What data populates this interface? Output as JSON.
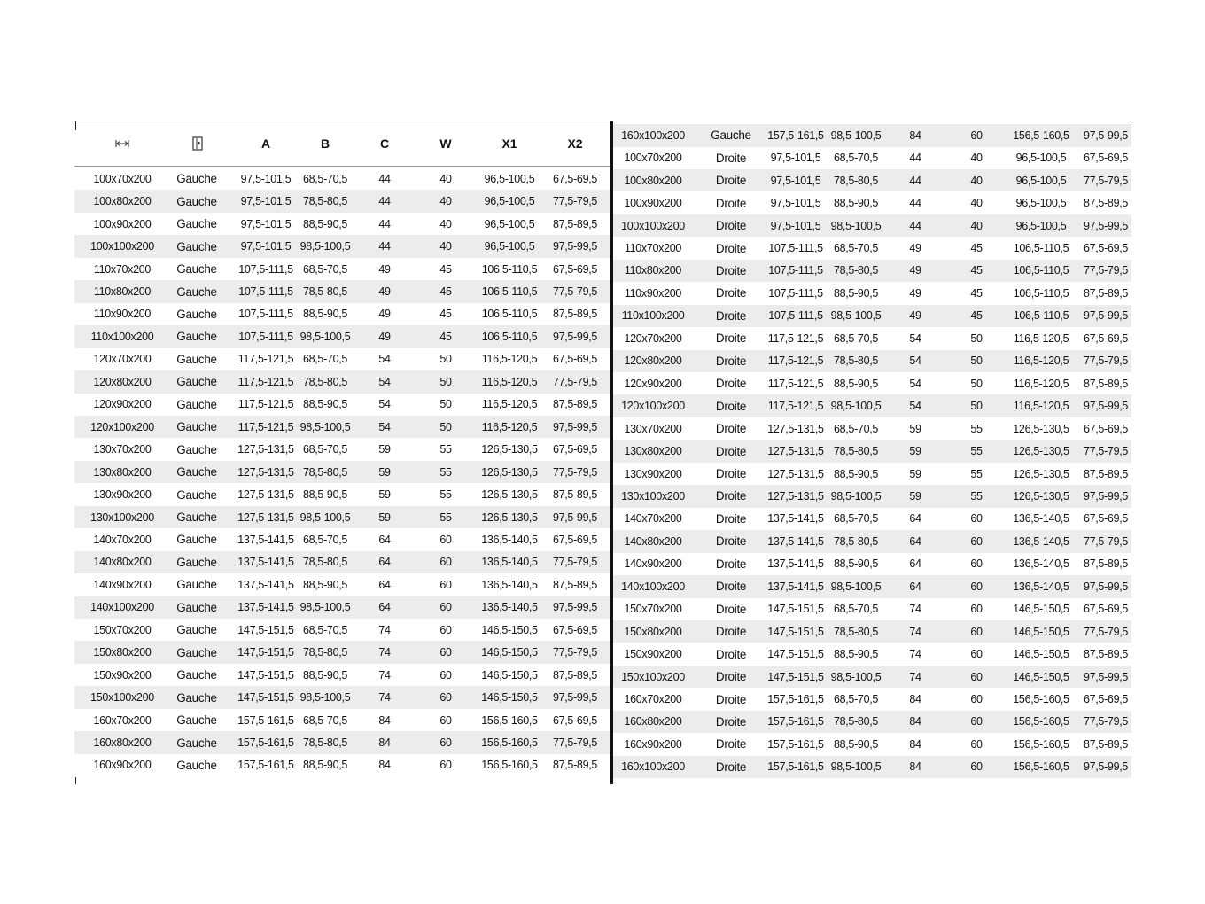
{
  "header": {
    "size_icon": "width-arrows-icon",
    "side_icon": "door-icon",
    "columns": [
      "A",
      "B",
      "C",
      "W",
      "X1",
      "X2"
    ]
  },
  "left_rows": [
    [
      "100x70x200",
      "Gauche",
      "97,5-101,5",
      "68,5-70,5",
      "44",
      "40",
      "96,5-100,5",
      "67,5-69,5"
    ],
    [
      "100x80x200",
      "Gauche",
      "97,5-101,5",
      "78,5-80,5",
      "44",
      "40",
      "96,5-100,5",
      "77,5-79,5"
    ],
    [
      "100x90x200",
      "Gauche",
      "97,5-101,5",
      "88,5-90,5",
      "44",
      "40",
      "96,5-100,5",
      "87,5-89,5"
    ],
    [
      "100x100x200",
      "Gauche",
      "97,5-101,5",
      "98,5-100,5",
      "44",
      "40",
      "96,5-100,5",
      "97,5-99,5"
    ],
    [
      "110x70x200",
      "Gauche",
      "107,5-111,5",
      "68,5-70,5",
      "49",
      "45",
      "106,5-110,5",
      "67,5-69,5"
    ],
    [
      "110x80x200",
      "Gauche",
      "107,5-111,5",
      "78,5-80,5",
      "49",
      "45",
      "106,5-110,5",
      "77,5-79,5"
    ],
    [
      "110x90x200",
      "Gauche",
      "107,5-111,5",
      "88,5-90,5",
      "49",
      "45",
      "106,5-110,5",
      "87,5-89,5"
    ],
    [
      "110x100x200",
      "Gauche",
      "107,5-111,5",
      "98,5-100,5",
      "49",
      "45",
      "106,5-110,5",
      "97,5-99,5"
    ],
    [
      "120x70x200",
      "Gauche",
      "117,5-121,5",
      "68,5-70,5",
      "54",
      "50",
      "116,5-120,5",
      "67,5-69,5"
    ],
    [
      "120x80x200",
      "Gauche",
      "117,5-121,5",
      "78,5-80,5",
      "54",
      "50",
      "116,5-120,5",
      "77,5-79,5"
    ],
    [
      "120x90x200",
      "Gauche",
      "117,5-121,5",
      "88,5-90,5",
      "54",
      "50",
      "116,5-120,5",
      "87,5-89,5"
    ],
    [
      "120x100x200",
      "Gauche",
      "117,5-121,5",
      "98,5-100,5",
      "54",
      "50",
      "116,5-120,5",
      "97,5-99,5"
    ],
    [
      "130x70x200",
      "Gauche",
      "127,5-131,5",
      "68,5-70,5",
      "59",
      "55",
      "126,5-130,5",
      "67,5-69,5"
    ],
    [
      "130x80x200",
      "Gauche",
      "127,5-131,5",
      "78,5-80,5",
      "59",
      "55",
      "126,5-130,5",
      "77,5-79,5"
    ],
    [
      "130x90x200",
      "Gauche",
      "127,5-131,5",
      "88,5-90,5",
      "59",
      "55",
      "126,5-130,5",
      "87,5-89,5"
    ],
    [
      "130x100x200",
      "Gauche",
      "127,5-131,5",
      "98,5-100,5",
      "59",
      "55",
      "126,5-130,5",
      "97,5-99,5"
    ],
    [
      "140x70x200",
      "Gauche",
      "137,5-141,5",
      "68,5-70,5",
      "64",
      "60",
      "136,5-140,5",
      "67,5-69,5"
    ],
    [
      "140x80x200",
      "Gauche",
      "137,5-141,5",
      "78,5-80,5",
      "64",
      "60",
      "136,5-140,5",
      "77,5-79,5"
    ],
    [
      "140x90x200",
      "Gauche",
      "137,5-141,5",
      "88,5-90,5",
      "64",
      "60",
      "136,5-140,5",
      "87,5-89,5"
    ],
    [
      "140x100x200",
      "Gauche",
      "137,5-141,5",
      "98,5-100,5",
      "64",
      "60",
      "136,5-140,5",
      "97,5-99,5"
    ],
    [
      "150x70x200",
      "Gauche",
      "147,5-151,5",
      "68,5-70,5",
      "74",
      "60",
      "146,5-150,5",
      "67,5-69,5"
    ],
    [
      "150x80x200",
      "Gauche",
      "147,5-151,5",
      "78,5-80,5",
      "74",
      "60",
      "146,5-150,5",
      "77,5-79,5"
    ],
    [
      "150x90x200",
      "Gauche",
      "147,5-151,5",
      "88,5-90,5",
      "74",
      "60",
      "146,5-150,5",
      "87,5-89,5"
    ],
    [
      "150x100x200",
      "Gauche",
      "147,5-151,5",
      "98,5-100,5",
      "74",
      "60",
      "146,5-150,5",
      "97,5-99,5"
    ],
    [
      "160x70x200",
      "Gauche",
      "157,5-161,5",
      "68,5-70,5",
      "84",
      "60",
      "156,5-160,5",
      "67,5-69,5"
    ],
    [
      "160x80x200",
      "Gauche",
      "157,5-161,5",
      "78,5-80,5",
      "84",
      "60",
      "156,5-160,5",
      "77,5-79,5"
    ],
    [
      "160x90x200",
      "Gauche",
      "157,5-161,5",
      "88,5-90,5",
      "84",
      "60",
      "156,5-160,5",
      "87,5-89,5"
    ]
  ],
  "right_rows": [
    [
      "160x100x200",
      "Gauche",
      "157,5-161,5",
      "98,5-100,5",
      "84",
      "60",
      "156,5-160,5",
      "97,5-99,5"
    ],
    [
      "100x70x200",
      "Droite",
      "97,5-101,5",
      "68,5-70,5",
      "44",
      "40",
      "96,5-100,5",
      "67,5-69,5"
    ],
    [
      "100x80x200",
      "Droite",
      "97,5-101,5",
      "78,5-80,5",
      "44",
      "40",
      "96,5-100,5",
      "77,5-79,5"
    ],
    [
      "100x90x200",
      "Droite",
      "97,5-101,5",
      "88,5-90,5",
      "44",
      "40",
      "96,5-100,5",
      "87,5-89,5"
    ],
    [
      "100x100x200",
      "Droite",
      "97,5-101,5",
      "98,5-100,5",
      "44",
      "40",
      "96,5-100,5",
      "97,5-99,5"
    ],
    [
      "110x70x200",
      "Droite",
      "107,5-111,5",
      "68,5-70,5",
      "49",
      "45",
      "106,5-110,5",
      "67,5-69,5"
    ],
    [
      "110x80x200",
      "Droite",
      "107,5-111,5",
      "78,5-80,5",
      "49",
      "45",
      "106,5-110,5",
      "77,5-79,5"
    ],
    [
      "110x90x200",
      "Droite",
      "107,5-111,5",
      "88,5-90,5",
      "49",
      "45",
      "106,5-110,5",
      "87,5-89,5"
    ],
    [
      "110x100x200",
      "Droite",
      "107,5-111,5",
      "98,5-100,5",
      "49",
      "45",
      "106,5-110,5",
      "97,5-99,5"
    ],
    [
      "120x70x200",
      "Droite",
      "117,5-121,5",
      "68,5-70,5",
      "54",
      "50",
      "116,5-120,5",
      "67,5-69,5"
    ],
    [
      "120x80x200",
      "Droite",
      "117,5-121,5",
      "78,5-80,5",
      "54",
      "50",
      "116,5-120,5",
      "77,5-79,5"
    ],
    [
      "120x90x200",
      "Droite",
      "117,5-121,5",
      "88,5-90,5",
      "54",
      "50",
      "116,5-120,5",
      "87,5-89,5"
    ],
    [
      "120x100x200",
      "Droite",
      "117,5-121,5",
      "98,5-100,5",
      "54",
      "50",
      "116,5-120,5",
      "97,5-99,5"
    ],
    [
      "130x70x200",
      "Droite",
      "127,5-131,5",
      "68,5-70,5",
      "59",
      "55",
      "126,5-130,5",
      "67,5-69,5"
    ],
    [
      "130x80x200",
      "Droite",
      "127,5-131,5",
      "78,5-80,5",
      "59",
      "55",
      "126,5-130,5",
      "77,5-79,5"
    ],
    [
      "130x90x200",
      "Droite",
      "127,5-131,5",
      "88,5-90,5",
      "59",
      "55",
      "126,5-130,5",
      "87,5-89,5"
    ],
    [
      "130x100x200",
      "Droite",
      "127,5-131,5",
      "98,5-100,5",
      "59",
      "55",
      "126,5-130,5",
      "97,5-99,5"
    ],
    [
      "140x70x200",
      "Droite",
      "137,5-141,5",
      "68,5-70,5",
      "64",
      "60",
      "136,5-140,5",
      "67,5-69,5"
    ],
    [
      "140x80x200",
      "Droite",
      "137,5-141,5",
      "78,5-80,5",
      "64",
      "60",
      "136,5-140,5",
      "77,5-79,5"
    ],
    [
      "140x90x200",
      "Droite",
      "137,5-141,5",
      "88,5-90,5",
      "64",
      "60",
      "136,5-140,5",
      "87,5-89,5"
    ],
    [
      "140x100x200",
      "Droite",
      "137,5-141,5",
      "98,5-100,5",
      "64",
      "60",
      "136,5-140,5",
      "97,5-99,5"
    ],
    [
      "150x70x200",
      "Droite",
      "147,5-151,5",
      "68,5-70,5",
      "74",
      "60",
      "146,5-150,5",
      "67,5-69,5"
    ],
    [
      "150x80x200",
      "Droite",
      "147,5-151,5",
      "78,5-80,5",
      "74",
      "60",
      "146,5-150,5",
      "77,5-79,5"
    ],
    [
      "150x90x200",
      "Droite",
      "147,5-151,5",
      "88,5-90,5",
      "74",
      "60",
      "146,5-150,5",
      "87,5-89,5"
    ],
    [
      "150x100x200",
      "Droite",
      "147,5-151,5",
      "98,5-100,5",
      "74",
      "60",
      "146,5-150,5",
      "97,5-99,5"
    ],
    [
      "160x70x200",
      "Droite",
      "157,5-161,5",
      "68,5-70,5",
      "84",
      "60",
      "156,5-160,5",
      "67,5-69,5"
    ],
    [
      "160x80x200",
      "Droite",
      "157,5-161,5",
      "78,5-80,5",
      "84",
      "60",
      "156,5-160,5",
      "77,5-79,5"
    ],
    [
      "160x90x200",
      "Droite",
      "157,5-161,5",
      "88,5-90,5",
      "84",
      "60",
      "156,5-160,5",
      "87,5-89,5"
    ],
    [
      "160x100x200",
      "Droite",
      "157,5-161,5",
      "98,5-100,5",
      "84",
      "60",
      "156,5-160,5",
      "97,5-99,5"
    ]
  ],
  "colors": {
    "stripe": "#ececec",
    "rule": "#111111"
  }
}
